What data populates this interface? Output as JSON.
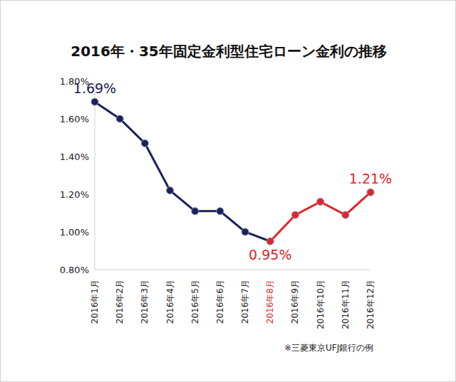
{
  "chart_data": {
    "type": "line",
    "title": "2016年・35年固定金利型住宅ローン金利の推移",
    "categories": [
      "2016年1月",
      "2016年2月",
      "2016年3月",
      "2016年4月",
      "2016年5月",
      "2016年6月",
      "2016年7月",
      "2016年8月",
      "2016年9月",
      "2016年10月",
      "2016年11月",
      "2016年12月"
    ],
    "values": [
      1.69,
      1.6,
      1.47,
      1.22,
      1.11,
      1.11,
      1.0,
      0.95,
      1.09,
      1.16,
      1.09,
      1.21
    ],
    "colors": [
      "#1c2157",
      "#1c2157",
      "#1c2157",
      "#1c2157",
      "#1c2157",
      "#1c2157",
      "#1c2157",
      "#e0262c",
      "#e0262c",
      "#e0262c",
      "#e0262c",
      "#e0262c"
    ],
    "marker": "circle",
    "ylim": [
      0.8,
      1.8
    ],
    "yticks": [
      {
        "value": 0.8,
        "label": "0.80%"
      },
      {
        "value": 1.0,
        "label": "1.00%"
      },
      {
        "value": 1.2,
        "label": "1.20%"
      },
      {
        "value": 1.4,
        "label": "1.40%"
      },
      {
        "value": 1.6,
        "label": "1.60%"
      },
      {
        "value": 1.8,
        "label": "1.80%"
      }
    ],
    "grid": false,
    "annotations": [
      {
        "text": "1.69%",
        "category": "2016年1月",
        "value": 1.69
      },
      {
        "text": "0.95%",
        "category": "2016年8月",
        "value": 0.95
      },
      {
        "text": "1.21%",
        "category": "2016年12月",
        "value": 1.21
      }
    ],
    "note": "※三菱東京UFJ銀行の例"
  }
}
